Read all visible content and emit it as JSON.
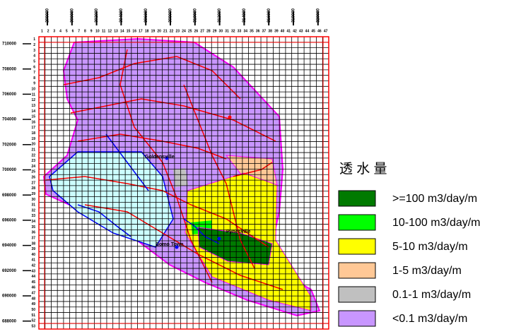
{
  "map": {
    "x_coordinates": [
      298000,
      300000,
      302000,
      304000,
      306000,
      308000,
      310000,
      312000,
      314000,
      316000,
      318000,
      320000
    ],
    "y_coordinates": [
      710000,
      708000,
      706000,
      704000,
      702000,
      700000,
      698000,
      696000,
      694000,
      692000,
      690000,
      688000
    ],
    "column_numbers": [
      1,
      2,
      3,
      4,
      5,
      6,
      7,
      8,
      9,
      10,
      11,
      12,
      13,
      14,
      15,
      16,
      17,
      18,
      19,
      20,
      21,
      22,
      23,
      24,
      25,
      26,
      27,
      28,
      29,
      30,
      31,
      32,
      33,
      34,
      35,
      36,
      37,
      38,
      39,
      40,
      41,
      42,
      43,
      44,
      45,
      46,
      47
    ],
    "row_numbers": [
      1,
      2,
      3,
      4,
      5,
      6,
      7,
      8,
      9,
      10,
      11,
      12,
      13,
      14,
      15,
      16,
      17,
      18,
      19,
      20,
      21,
      22,
      23,
      24,
      25,
      26,
      27,
      28,
      29,
      30,
      31,
      32,
      33,
      34,
      35,
      36,
      37,
      38,
      39,
      40,
      41,
      42,
      43,
      44,
      45,
      46,
      47,
      48,
      49,
      50,
      51,
      52,
      53
    ],
    "place_labels": [
      "Goldensville",
      "Pynesville",
      "Bomo Town"
    ],
    "legend": {
      "title": "透 水 量",
      "items": [
        {
          "label": ">=100 m3/day/m",
          "color": "#007a00"
        },
        {
          "label": "10-100 m3/day/m",
          "color": "#00ff00"
        },
        {
          "label": "5-10 m3/day/m",
          "color": "#ffff00"
        },
        {
          "label": "1-5 m3/day/m",
          "color": "#ffc896"
        },
        {
          "label": "0.1-1 m3/day/m",
          "color": "#c0c0c0"
        },
        {
          "label": "<0.1 m3/day/m",
          "color": "#c896ff"
        }
      ]
    }
  }
}
